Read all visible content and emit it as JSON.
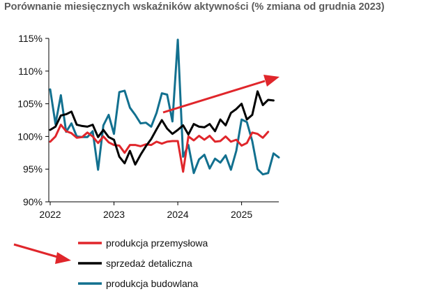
{
  "chart_data": {
    "type": "line",
    "title": "Porównanie miesięcznych wskaźników aktywności (% zmiana od grudnia 2023)",
    "xlabel": "",
    "ylabel": "",
    "x_ticks": [
      "2022",
      "2023",
      "2024",
      "2025"
    ],
    "y_ticks": [
      "115%",
      "110%",
      "105%",
      "100%",
      "95%",
      "90%"
    ],
    "ylim": [
      90,
      115
    ],
    "grid": false,
    "legend_position": "bottom",
    "series": [
      {
        "name": "produkcja przemysłowa",
        "color": "#e0262b",
        "values": [
          99.2,
          100.0,
          101.8,
          100.8,
          100.5,
          99.8,
          99.9,
          100.6,
          100.0,
          99.0,
          100.0,
          99.1,
          98.7,
          98.6,
          97.5,
          98.7,
          98.7,
          98.5,
          98.8,
          98.7,
          99.2,
          98.9,
          99.2,
          99.3,
          99.3,
          94.6,
          100.0,
          99.4,
          100.1,
          99.5,
          100.1,
          99.2,
          99.3,
          100.0,
          99.2,
          99.5,
          98.6,
          99.0,
          100.6,
          100.4,
          99.8,
          100.7
        ]
      },
      {
        "name": "sprzedaż detaliczna",
        "color": "#000000",
        "values": [
          101.0,
          101.5,
          103.2,
          103.4,
          103.8,
          101.8,
          101.6,
          101.5,
          101.8,
          99.9,
          101.0,
          99.9,
          99.5,
          96.9,
          95.9,
          97.8,
          95.7,
          97.2,
          98.5,
          99.6,
          101.1,
          102.5,
          101.2,
          100.4,
          101.0,
          101.7,
          100.3,
          101.9,
          101.5,
          101.4,
          101.9,
          100.8,
          102.6,
          101.7,
          103.6,
          104.2,
          105.0,
          102.6,
          103.3,
          106.9,
          104.8,
          105.6,
          105.5
        ]
      },
      {
        "name": "produkcja budowlana",
        "color": "#12708f",
        "values": [
          107.2,
          101.9,
          106.3,
          100.7,
          102.0,
          100.0,
          99.9,
          99.9,
          100.8,
          94.9,
          101.7,
          103.3,
          100.4,
          106.8,
          107.0,
          104.4,
          103.3,
          102.0,
          102.1,
          101.5,
          103.6,
          106.6,
          106.4,
          102.3,
          114.8,
          96.9,
          98.7,
          94.4,
          96.5,
          97.2,
          95.1,
          96.6,
          96.0,
          97.1,
          94.9,
          97.8,
          102.6,
          102.2,
          99.3,
          95.0,
          94.2,
          94.4,
          97.4,
          96.8
        ]
      }
    ]
  }
}
